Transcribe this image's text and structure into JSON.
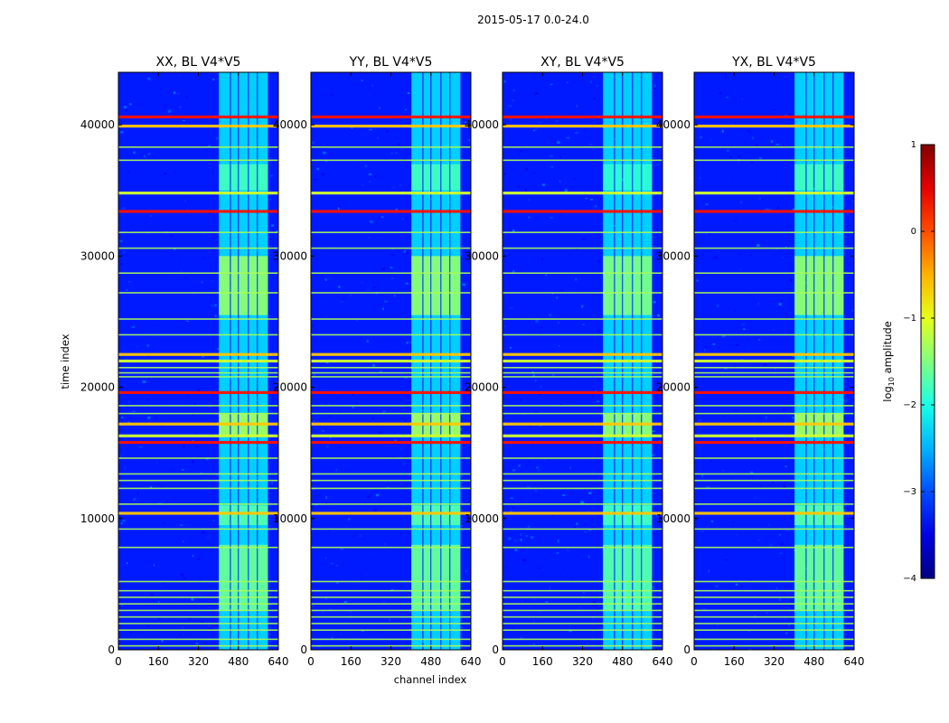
{
  "figure_title": "2015-05-17 0.0-24.0",
  "chart_data": {
    "type": "heatmap",
    "shared": {
      "xlabel": "channel index",
      "ylabel": "time index",
      "xlim": [
        0,
        640
      ],
      "ylim": [
        0,
        44000
      ],
      "xticks": [
        0,
        160,
        320,
        480,
        640
      ],
      "xtick_labels": [
        "0",
        "160",
        "320",
        "480",
        "640"
      ],
      "yticks": [
        0,
        10000,
        20000,
        30000,
        40000
      ],
      "ytick_labels": [
        "0",
        "10000",
        "20000",
        "30000",
        "40000"
      ],
      "colormap": "jet",
      "colorbar": {
        "label_prefix": "log",
        "label_sub": "10",
        "label_suffix": " amplitude",
        "range": [
          -4,
          1
        ],
        "ticks": [
          1,
          0,
          -1,
          -2,
          -3,
          -4
        ],
        "tick_labels": [
          "1",
          "0",
          "−1",
          "−2",
          "−3",
          "−4"
        ]
      },
      "rfi_channel_band": [
        400,
        600
      ],
      "rfi_channel_gaps": [
        448,
        480,
        520,
        556
      ],
      "strong_rows": [
        40600,
        39900,
        34800,
        33400,
        22500,
        22000,
        19600,
        17200,
        16300,
        15800,
        10400
      ],
      "weak_rows": [
        38300,
        37300,
        31800,
        30600,
        28700,
        27200,
        25200,
        24000,
        21500,
        21100,
        20800,
        18600,
        18000,
        14600,
        13400,
        12900,
        12300,
        11100,
        9200,
        7800,
        5200,
        4500,
        4000,
        3500,
        3000,
        2500,
        2000,
        1500,
        800,
        300
      ],
      "signal_blocks": [
        {
          "t": [
            25500,
            30000
          ],
          "level": -1.4
        },
        {
          "t": [
            3000,
            8000
          ],
          "level": -1.6
        },
        {
          "t": [
            35000,
            37000
          ],
          "level": -1.8
        },
        {
          "t": [
            16300,
            18000
          ],
          "level": -1.3
        },
        {
          "t": [
            9500,
            11000
          ],
          "level": -1.7
        }
      ]
    },
    "panels": [
      {
        "title": "XX, BL V4*V5"
      },
      {
        "title": "YY, BL V4*V5"
      },
      {
        "title": "XY, BL V4*V5"
      },
      {
        "title": "YX, BL V4*V5"
      }
    ]
  }
}
